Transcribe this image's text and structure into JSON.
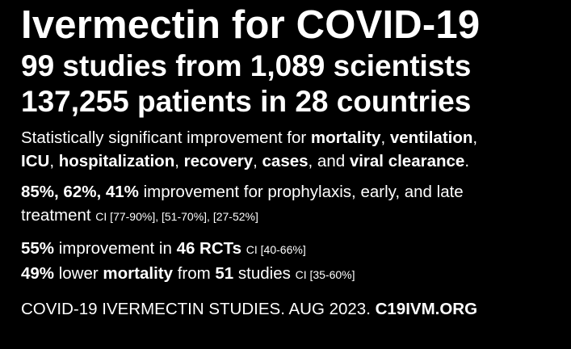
{
  "header": {
    "title": "Ivermectin for COVID-19",
    "line1": "99 studies from 1,089 scientists",
    "line2": "137,255 patients in 28 countries"
  },
  "significance": {
    "prefix": "Statistically significant improvement for ",
    "mortality": "mortality",
    "sep1": ", ",
    "ventilation": "ventilation",
    "sep2": ",",
    "icu": "ICU",
    "sep3": ", ",
    "hospitalization": "hospitalization",
    "sep4": ", ",
    "recovery": "recovery",
    "sep5": ", ",
    "cases": "cases",
    "sep6": ", and ",
    "viral_clearance": "viral clearance",
    "suffix": "."
  },
  "improvement": {
    "values": "85%, 62%, 41%",
    "text": " improvement for prophylaxis, early, and late",
    "text2": "treatment ",
    "ci": "CI [77-90%], [51-70%], [27-52%]"
  },
  "rcts": {
    "value": "55%",
    "text": " improvement in ",
    "count": "46 RCTs",
    "ci_spacer": " ",
    "ci": "CI [40-66%]"
  },
  "mortality": {
    "value": "49%",
    "text": " lower ",
    "keyword": "mortality",
    "text2": " from ",
    "count": "51",
    "text3": " studies ",
    "ci": "CI [35-60%]"
  },
  "footer": {
    "text": "COVID-19 IVERMECTIN STUDIES. AUG 2023. ",
    "site": "C19IVM.ORG"
  }
}
